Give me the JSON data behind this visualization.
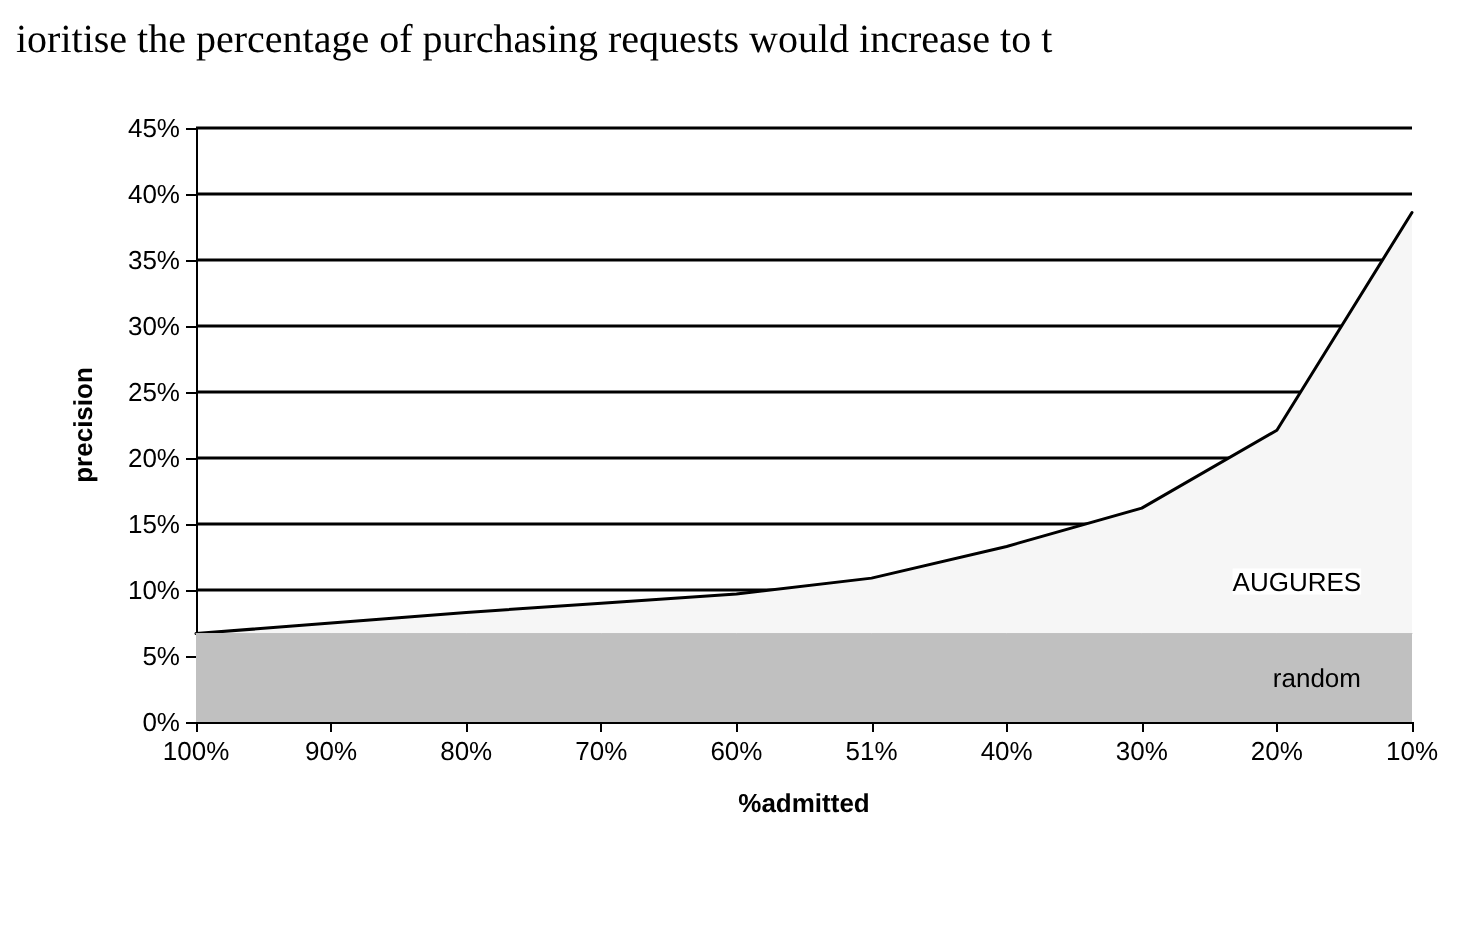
{
  "chart_data": {
    "type": "area",
    "xlabel": "%admitted",
    "ylabel": "precision",
    "annotations": [
      "ioritise the percentage of purchasing requests would increase to t"
    ],
    "categories": [
      "100%",
      "90%",
      "80%",
      "70%",
      "60%",
      "51%",
      "40%",
      "30%",
      "20%",
      "10%"
    ],
    "series": [
      {
        "name": "AUGURES",
        "color": "#000000",
        "values": [
          6.7,
          7.5,
          8.3,
          9.0,
          9.7,
          10.9,
          13.3,
          16.2,
          22.1,
          38.6
        ]
      },
      {
        "name": "random",
        "color": "#c0c0c0",
        "values": [
          6.7,
          6.7,
          6.7,
          6.7,
          6.7,
          6.7,
          6.7,
          6.7,
          6.7,
          6.7
        ]
      }
    ],
    "ylim": [
      0,
      45
    ],
    "yticks": [
      {
        "value": 0,
        "label": "0%"
      },
      {
        "value": 5,
        "label": "5%"
      },
      {
        "value": 10,
        "label": "10%"
      },
      {
        "value": 15,
        "label": "15%"
      },
      {
        "value": 20,
        "label": "20%"
      },
      {
        "value": 25,
        "label": "25%"
      },
      {
        "value": 30,
        "label": "30%"
      },
      {
        "value": 35,
        "label": "35%"
      },
      {
        "value": 40,
        "label": "40%"
      },
      {
        "value": 45,
        "label": "45%"
      }
    ],
    "grid": "y",
    "legend": false,
    "marker": "none",
    "line_style": "solid"
  }
}
